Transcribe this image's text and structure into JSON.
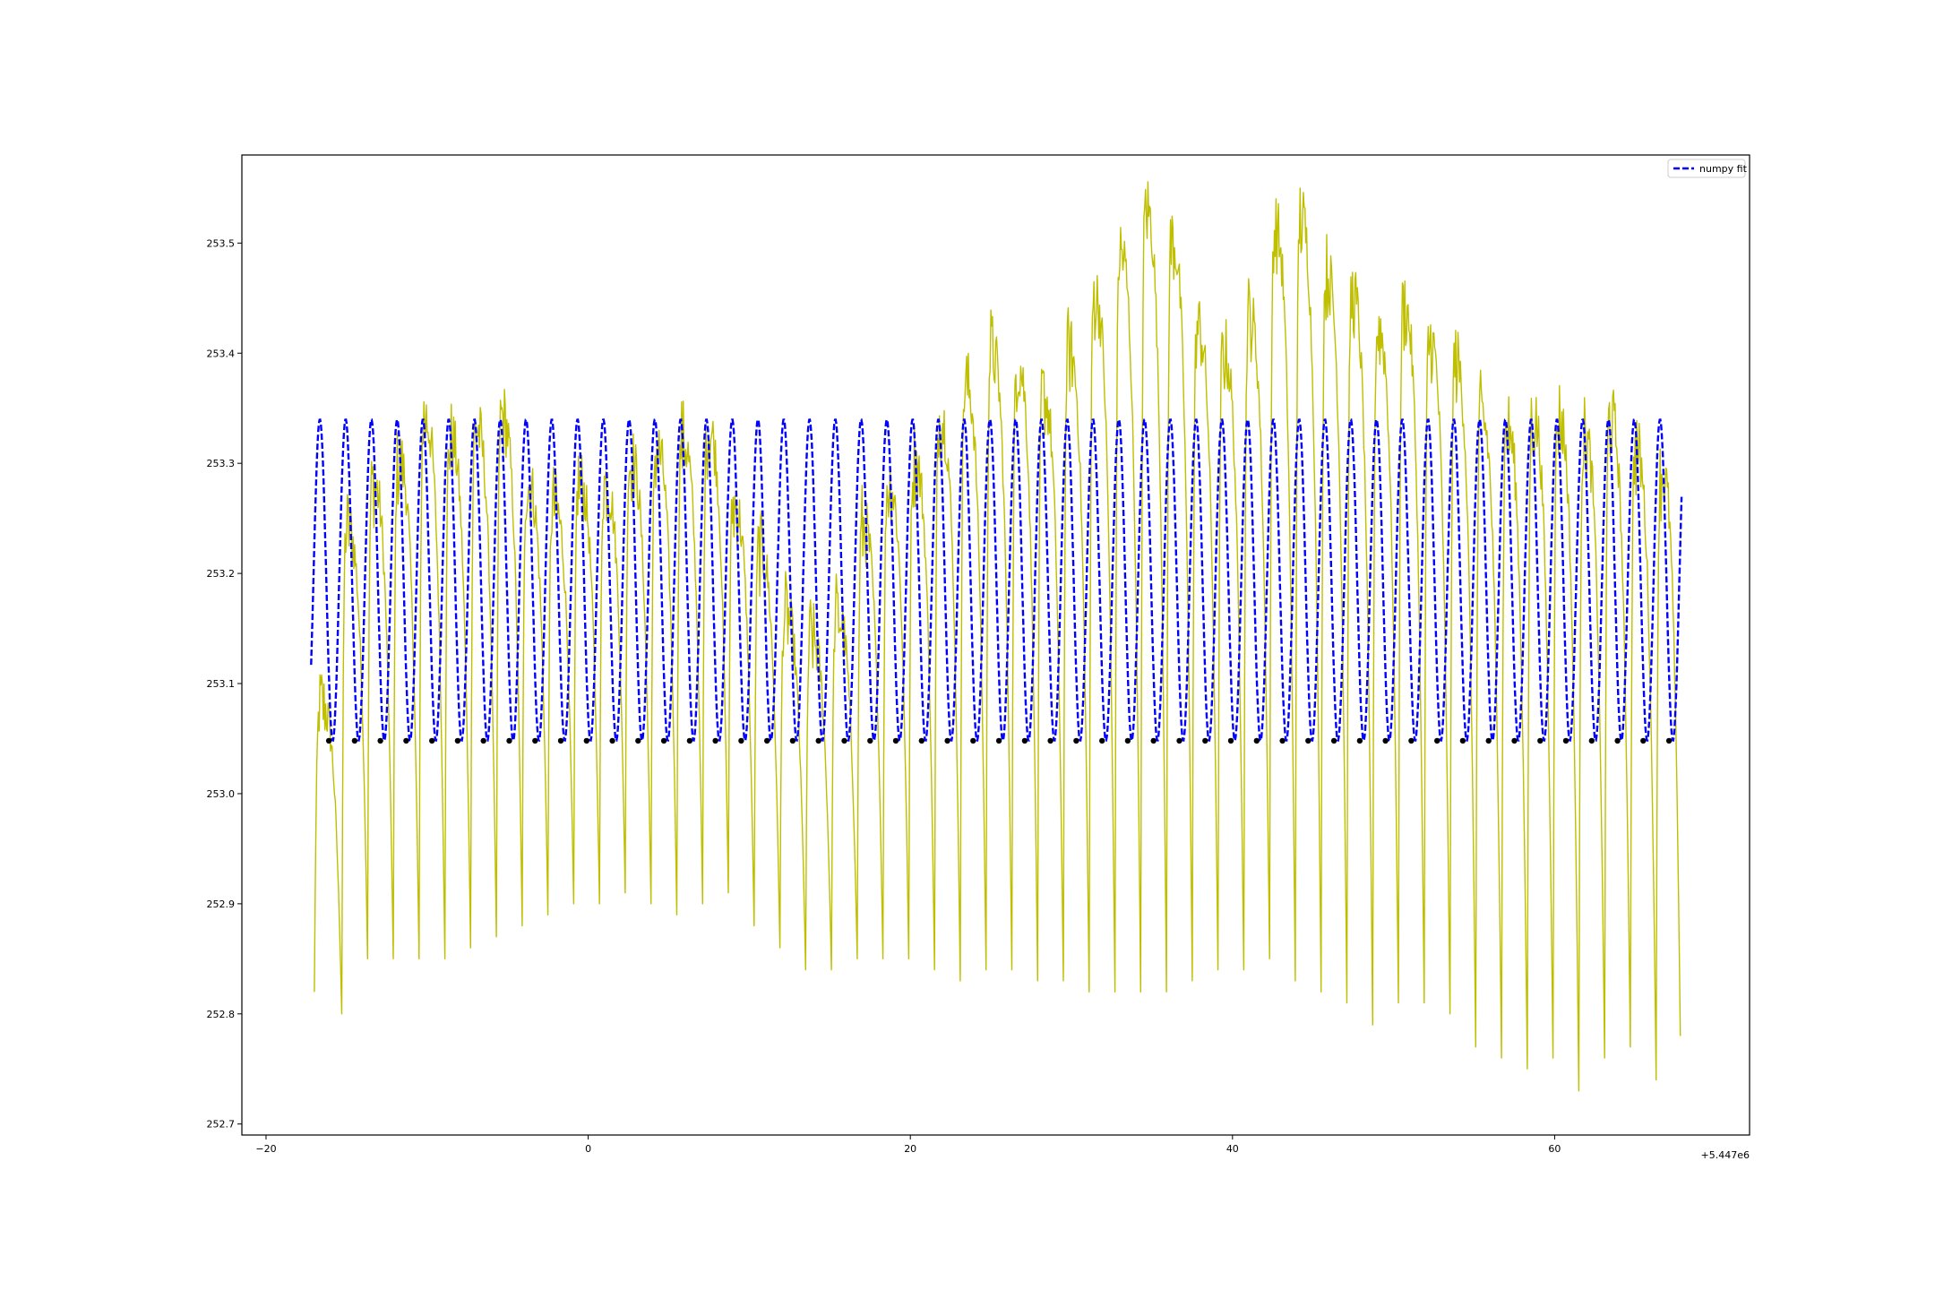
{
  "chart_data": {
    "type": "line",
    "title": "",
    "xlabel": "",
    "ylabel": "",
    "x_offset_text": "+5.447e6",
    "xlim": [
      -21.5,
      72.1
    ],
    "ylim": [
      252.69,
      253.58
    ],
    "x_ticks": [
      {
        "value": -20,
        "label": "−20"
      },
      {
        "value": 0,
        "label": "0"
      },
      {
        "value": 20,
        "label": "20"
      },
      {
        "value": 40,
        "label": "40"
      },
      {
        "value": 60,
        "label": "60"
      }
    ],
    "y_ticks": [
      {
        "value": 252.7,
        "label": "252.7"
      },
      {
        "value": 252.8,
        "label": "252.8"
      },
      {
        "value": 252.9,
        "label": "252.9"
      },
      {
        "value": 253.0,
        "label": "253.0"
      },
      {
        "value": 253.1,
        "label": "253.1"
      },
      {
        "value": 253.2,
        "label": "253.2"
      },
      {
        "value": 253.3,
        "label": "253.3"
      },
      {
        "value": 253.4,
        "label": "253.4"
      },
      {
        "value": 253.5,
        "label": "253.5"
      }
    ],
    "grid": false,
    "legend_position": "upper right",
    "series": [
      {
        "name": "",
        "style": "solid line",
        "color": "#bfbf00",
        "x_range": [
          -17.2,
          67.9
        ],
        "sample_step": 0.05,
        "peaks": {
          "x": [
            -16.6,
            -15.0,
            -13.4,
            -11.8,
            -10.2,
            -8.6,
            -7.0,
            -5.4,
            -3.8,
            -2.2,
            -0.6,
            1.0,
            2.6,
            4.2,
            5.8,
            7.4,
            9.0,
            10.6,
            12.2,
            13.8,
            15.4,
            17.0,
            18.6,
            20.2,
            21.8,
            23.4,
            25.0,
            26.6,
            28.2,
            29.8,
            31.4,
            33.0,
            34.6,
            36.2,
            37.8,
            39.4,
            41.0,
            42.6,
            44.2,
            45.8,
            47.4,
            49.0,
            50.6,
            52.2,
            53.8,
            55.4,
            57.0,
            58.6,
            60.2,
            61.8,
            63.4,
            65.0,
            66.6
          ],
          "y": [
            253.08,
            253.24,
            253.28,
            253.3,
            253.34,
            253.32,
            253.33,
            253.34,
            253.28,
            253.26,
            253.28,
            253.28,
            253.3,
            253.31,
            253.32,
            253.33,
            253.26,
            253.22,
            253.16,
            253.14,
            253.16,
            253.24,
            253.28,
            253.3,
            253.34,
            253.37,
            253.4,
            253.39,
            253.36,
            253.4,
            253.45,
            253.49,
            253.53,
            253.5,
            253.42,
            253.4,
            253.43,
            253.51,
            253.52,
            253.47,
            253.45,
            253.42,
            253.44,
            253.41,
            253.39,
            253.34,
            253.33,
            253.34,
            253.34,
            253.32,
            253.34,
            253.31,
            253.29
          ]
        },
        "troughs": {
          "x": [
            -17.0,
            -15.3,
            -13.7,
            -12.1,
            -10.5,
            -8.9,
            -7.3,
            -5.7,
            -4.1,
            -2.5,
            -0.9,
            0.7,
            2.3,
            3.9,
            5.5,
            7.1,
            8.7,
            10.3,
            11.9,
            13.5,
            15.1,
            16.7,
            18.3,
            19.9,
            21.5,
            23.1,
            24.7,
            26.3,
            27.9,
            29.5,
            31.1,
            32.7,
            34.3,
            35.9,
            37.5,
            39.1,
            40.7,
            42.3,
            43.9,
            45.5,
            47.1,
            48.7,
            50.3,
            51.9,
            53.5,
            55.1,
            56.7,
            58.3,
            59.9,
            61.5,
            63.1,
            64.7,
            66.3,
            67.8
          ],
          "y": [
            252.82,
            252.8,
            252.85,
            252.85,
            252.85,
            252.85,
            252.86,
            252.87,
            252.88,
            252.89,
            252.9,
            252.9,
            252.91,
            252.9,
            252.89,
            252.9,
            252.91,
            252.88,
            252.86,
            252.84,
            252.84,
            252.85,
            252.85,
            252.85,
            252.84,
            252.83,
            252.84,
            252.84,
            252.83,
            252.83,
            252.82,
            252.82,
            252.82,
            252.82,
            252.83,
            252.84,
            252.84,
            252.85,
            252.83,
            252.82,
            252.81,
            252.79,
            252.81,
            252.81,
            252.8,
            252.77,
            252.76,
            252.75,
            252.76,
            252.73,
            252.76,
            252.77,
            252.74,
            252.78
          ]
        }
      },
      {
        "name": "numpy fit",
        "style": "dashed line",
        "color": "#0000ff",
        "x_range": [
          -17.2,
          67.9
        ],
        "offset": 253.194,
        "amplitude": 0.146,
        "period": 1.6,
        "phase": 4.157
      },
      {
        "name": "",
        "style": "markers",
        "color": "#000000",
        "x": [
          -16.1,
          -14.5,
          -12.9,
          -11.3,
          -9.7,
          -8.1,
          -6.5,
          -4.9,
          -3.3,
          -1.7,
          -0.1,
          1.5,
          3.1,
          4.7,
          6.3,
          7.9,
          9.5,
          11.1,
          12.7,
          14.3,
          15.9,
          17.5,
          19.1,
          20.7,
          22.3,
          23.9,
          25.5,
          27.1,
          28.7,
          30.3,
          31.9,
          33.5,
          35.1,
          36.7,
          38.3,
          39.9,
          41.5,
          43.1,
          44.7,
          46.3,
          47.9,
          49.5,
          51.1,
          52.7,
          54.3,
          55.9,
          57.5,
          59.1,
          60.7,
          62.3,
          63.9,
          65.5,
          67.1
        ],
        "y_constant": 253.048
      }
    ]
  },
  "legend": {
    "entries": [
      {
        "label": "numpy fit",
        "color": "#0000ff"
      }
    ]
  }
}
